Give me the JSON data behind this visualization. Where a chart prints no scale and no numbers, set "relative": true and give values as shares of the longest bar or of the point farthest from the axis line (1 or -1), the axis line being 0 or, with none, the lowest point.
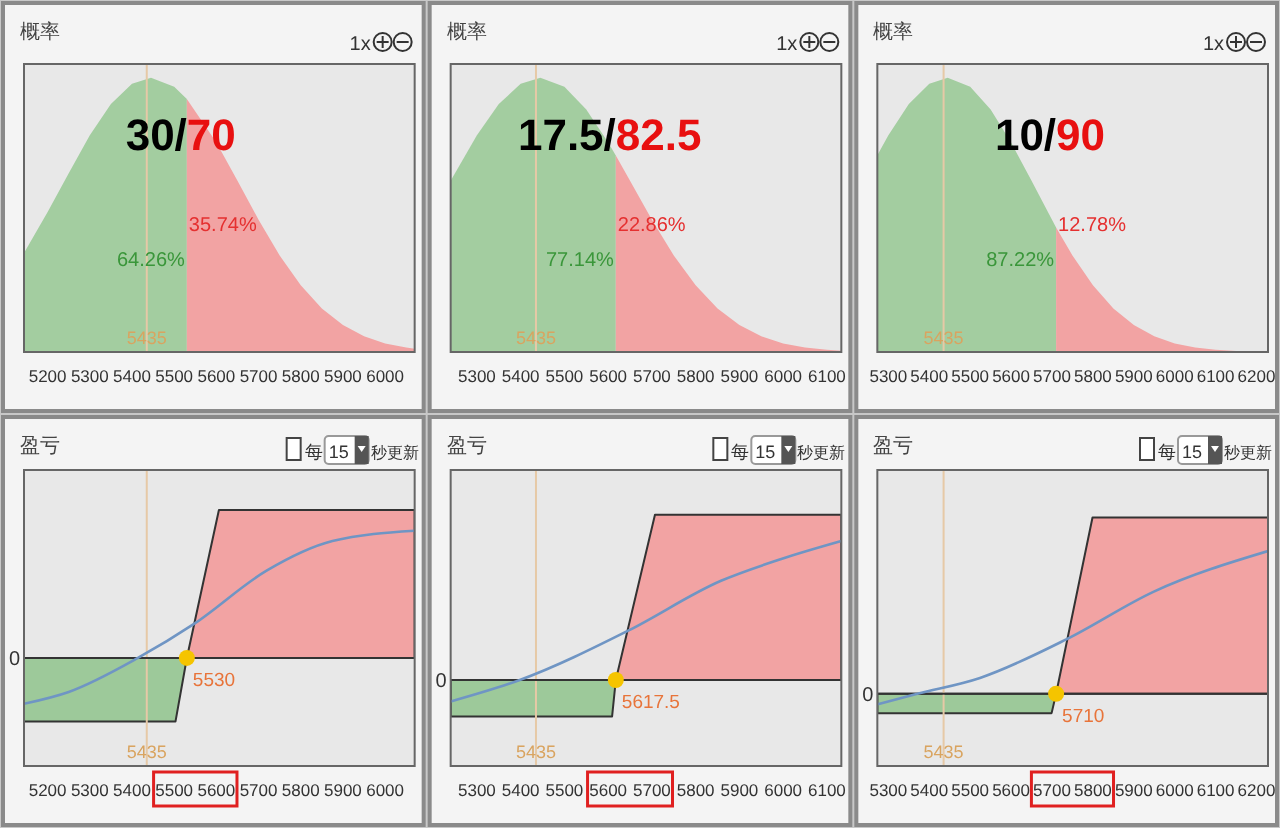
{
  "chart_data": [
    {
      "type": "area",
      "title": "概率",
      "relative": true,
      "xlim": [
        5144,
        6070
      ],
      "xticks": [
        5200,
        5300,
        5400,
        5500,
        5600,
        5700,
        5800,
        5900,
        6000
      ],
      "series": [
        {
          "color": "#a3cda0",
          "x": [
            5144,
            5200,
            5250,
            5300,
            5350,
            5400,
            5445,
            5500,
            5530
          ],
          "values": [
            0.361,
            0.51,
            0.652,
            0.79,
            0.904,
            0.978,
            1,
            0.967,
            0.922
          ]
        },
        {
          "color": "#f2a3a3",
          "x": [
            5530,
            5600,
            5650,
            5700,
            5750,
            5800,
            5850,
            5900,
            5950,
            6000,
            6050,
            6070
          ],
          "values": [
            0.922,
            0.764,
            0.624,
            0.482,
            0.352,
            0.243,
            0.159,
            0.098,
            0.057,
            0.031,
            0.016,
            0.012
          ]
        }
      ],
      "ref_lines": [
        {
          "axis": "x",
          "value": 5435,
          "label": "5435",
          "color": "#e6c9a6"
        }
      ],
      "annotations": [
        "30/70",
        "64.26%",
        "35.74%",
        "1x"
      ]
    },
    {
      "type": "area",
      "title": "概率",
      "relative": true,
      "xlim": [
        5240,
        6133
      ],
      "xticks": [
        5300,
        5400,
        5500,
        5600,
        5700,
        5800,
        5900,
        6000,
        6100
      ],
      "series": [
        {
          "color": "#a3cda0",
          "x": [
            5240,
            5300,
            5350,
            5400,
            5445,
            5500,
            5550,
            5600,
            5617.5
          ],
          "values": [
            0.624,
            0.79,
            0.904,
            0.978,
            1,
            0.967,
            0.884,
            0.764,
            0.716
          ]
        },
        {
          "color": "#f2a3a3",
          "x": [
            5617.5,
            5650,
            5700,
            5750,
            5800,
            5850,
            5900,
            5950,
            6000,
            6050,
            6100,
            6133
          ],
          "values": [
            0.716,
            0.624,
            0.482,
            0.352,
            0.243,
            0.159,
            0.098,
            0.057,
            0.031,
            0.016,
            0.008,
            0.005
          ]
        }
      ],
      "ref_lines": [
        {
          "axis": "x",
          "value": 5435,
          "label": "5435",
          "color": "#e6c9a6"
        }
      ],
      "annotations": [
        "17.5/82.5",
        "77.14%",
        "22.86%",
        "1x"
      ]
    },
    {
      "type": "area",
      "title": "概率",
      "relative": true,
      "xlim": [
        5273,
        6228
      ],
      "xticks": [
        5300,
        5400,
        5500,
        5600,
        5700,
        5800,
        5900,
        6000,
        6100,
        6200
      ],
      "series": [
        {
          "color": "#a3cda0",
          "x": [
            5273,
            5300,
            5350,
            5400,
            5445,
            5500,
            5550,
            5600,
            5650,
            5700,
            5710
          ],
          "values": [
            0.717,
            0.79,
            0.904,
            0.978,
            1,
            0.967,
            0.884,
            0.764,
            0.624,
            0.482,
            0.454
          ]
        },
        {
          "color": "#f2a3a3",
          "x": [
            5710,
            5750,
            5800,
            5850,
            5900,
            5950,
            6000,
            6050,
            6100,
            6150,
            6200,
            6228
          ],
          "values": [
            0.454,
            0.352,
            0.243,
            0.159,
            0.098,
            0.057,
            0.031,
            0.016,
            0.008,
            0.004,
            0.002,
            0.001
          ]
        }
      ],
      "ref_lines": [
        {
          "axis": "x",
          "value": 5435,
          "label": "5435",
          "color": "#e6c9a6"
        }
      ],
      "annotations": [
        "10/90",
        "87.22%",
        "12.78%",
        "1x"
      ]
    },
    {
      "type": "area",
      "title": "盈亏",
      "relative": true,
      "xlim": [
        5144,
        6070
      ],
      "xticks": [
        5200,
        5300,
        5400,
        5500,
        5600,
        5700,
        5800,
        5900,
        6000
      ],
      "series": [
        {
          "color": "#9dc99a",
          "line_style": "solid",
          "x": [
            5144,
            5503,
            5530
          ],
          "values": [
            -0.43,
            -0.43,
            0
          ]
        },
        {
          "color": "#f2a3a3",
          "line_style": "solid",
          "x": [
            5530,
            5606,
            6070
          ],
          "values": [
            0,
            1,
            1
          ]
        },
        {
          "type": "line",
          "color": "#6f95c4",
          "x": [
            5144,
            5250,
            5414,
            5547,
            5719,
            5875,
            6070
          ],
          "values": [
            -0.31,
            -0.23,
            0,
            0.23,
            0.59,
            0.79,
            0.86
          ]
        },
        {
          "type": "scatter",
          "color": "#f5c400",
          "marker": "circle",
          "x": [
            5530
          ],
          "values": [
            0
          ]
        }
      ],
      "ref_lines": [
        {
          "axis": "x",
          "value": 5435,
          "label": "5435",
          "color": "#e6c9a6"
        },
        {
          "axis": "y",
          "value": 0,
          "label": "0",
          "color": "#333333"
        }
      ],
      "annotations": [
        "每",
        "15",
        "秒更新",
        {
          "text": "5530",
          "x": 5530,
          "y": 0
        }
      ]
    },
    {
      "type": "area",
      "title": "盈亏",
      "relative": true,
      "xlim": [
        5240,
        6133
      ],
      "xticks": [
        5300,
        5400,
        5500,
        5600,
        5700,
        5800,
        5900,
        6000,
        6100
      ],
      "series": [
        {
          "color": "#9dc99a",
          "line_style": "solid",
          "x": [
            5240,
            5609,
            5617.5
          ],
          "values": [
            -0.22,
            -0.22,
            0
          ]
        },
        {
          "color": "#f2a3a3",
          "line_style": "solid",
          "x": [
            5617.5,
            5707,
            6133
          ],
          "values": [
            0,
            1,
            1
          ]
        },
        {
          "type": "line",
          "color": "#6f95c4",
          "x": [
            5240,
            5398,
            5647,
            5858,
            5994,
            6133
          ],
          "values": [
            -0.13,
            0,
            0.3,
            0.6,
            0.73,
            0.84
          ]
        },
        {
          "type": "scatter",
          "color": "#f5c400",
          "marker": "circle",
          "x": [
            5617.5
          ],
          "values": [
            0
          ]
        }
      ],
      "ref_lines": [
        {
          "axis": "x",
          "value": 5435,
          "label": "5435",
          "color": "#e6c9a6"
        },
        {
          "axis": "y",
          "value": 0,
          "label": "0",
          "color": "#333333"
        }
      ],
      "annotations": [
        "每",
        "15",
        "秒更新",
        {
          "text": "5617.5",
          "x": 5617.5,
          "y": 0
        }
      ]
    },
    {
      "type": "area",
      "title": "盈亏",
      "relative": true,
      "xlim": [
        5273,
        6228
      ],
      "xticks": [
        5300,
        5400,
        5500,
        5600,
        5700,
        5800,
        5900,
        6000,
        6100,
        6200
      ],
      "series": [
        {
          "color": "#9dc99a",
          "line_style": "solid",
          "x": [
            5273,
            5699,
            5710
          ],
          "values": [
            -0.11,
            -0.11,
            0
          ]
        },
        {
          "color": "#f2a3a3",
          "line_style": "solid",
          "x": [
            5710,
            5799,
            6228
          ],
          "values": [
            0,
            1,
            1
          ]
        },
        {
          "type": "line",
          "color": "#6f95c4",
          "x": [
            5273,
            5371,
            5524,
            5736,
            5949,
            6228
          ],
          "values": [
            -0.06,
            0,
            0.09,
            0.31,
            0.58,
            0.81
          ]
        },
        {
          "type": "scatter",
          "color": "#f5c400",
          "marker": "circle",
          "x": [
            5710
          ],
          "values": [
            0
          ]
        }
      ],
      "ref_lines": [
        {
          "axis": "x",
          "value": 5435,
          "label": "5435",
          "color": "#e6c9a6"
        },
        {
          "axis": "y",
          "value": 0,
          "label": "0",
          "color": "#333333"
        }
      ],
      "annotations": [
        "每",
        "15",
        "秒更新",
        {
          "text": "5710",
          "x": 5710,
          "y": 0
        }
      ]
    }
  ]
}
